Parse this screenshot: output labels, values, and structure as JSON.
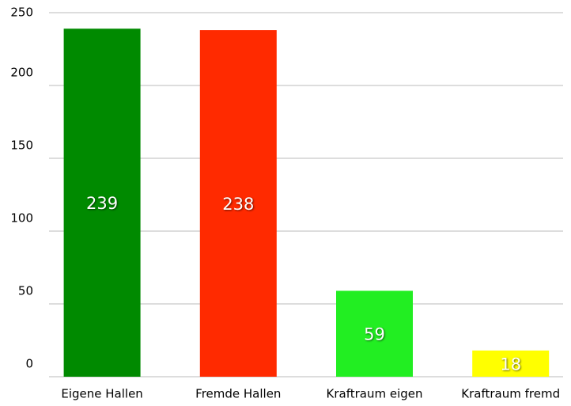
{
  "chart_data": {
    "type": "bar",
    "categories": [
      "Eigene Hallen",
      "Fremde Hallen",
      "Kraftraum eigen",
      "Kraftraum fremd"
    ],
    "values": [
      239,
      238,
      59,
      18
    ],
    "colors": [
      "#008a00",
      "#ff2a00",
      "#22ee22",
      "#ffff00"
    ],
    "ylim": [
      0,
      250
    ],
    "yticks": [
      0,
      50,
      100,
      150,
      200,
      250
    ],
    "grid": true
  }
}
